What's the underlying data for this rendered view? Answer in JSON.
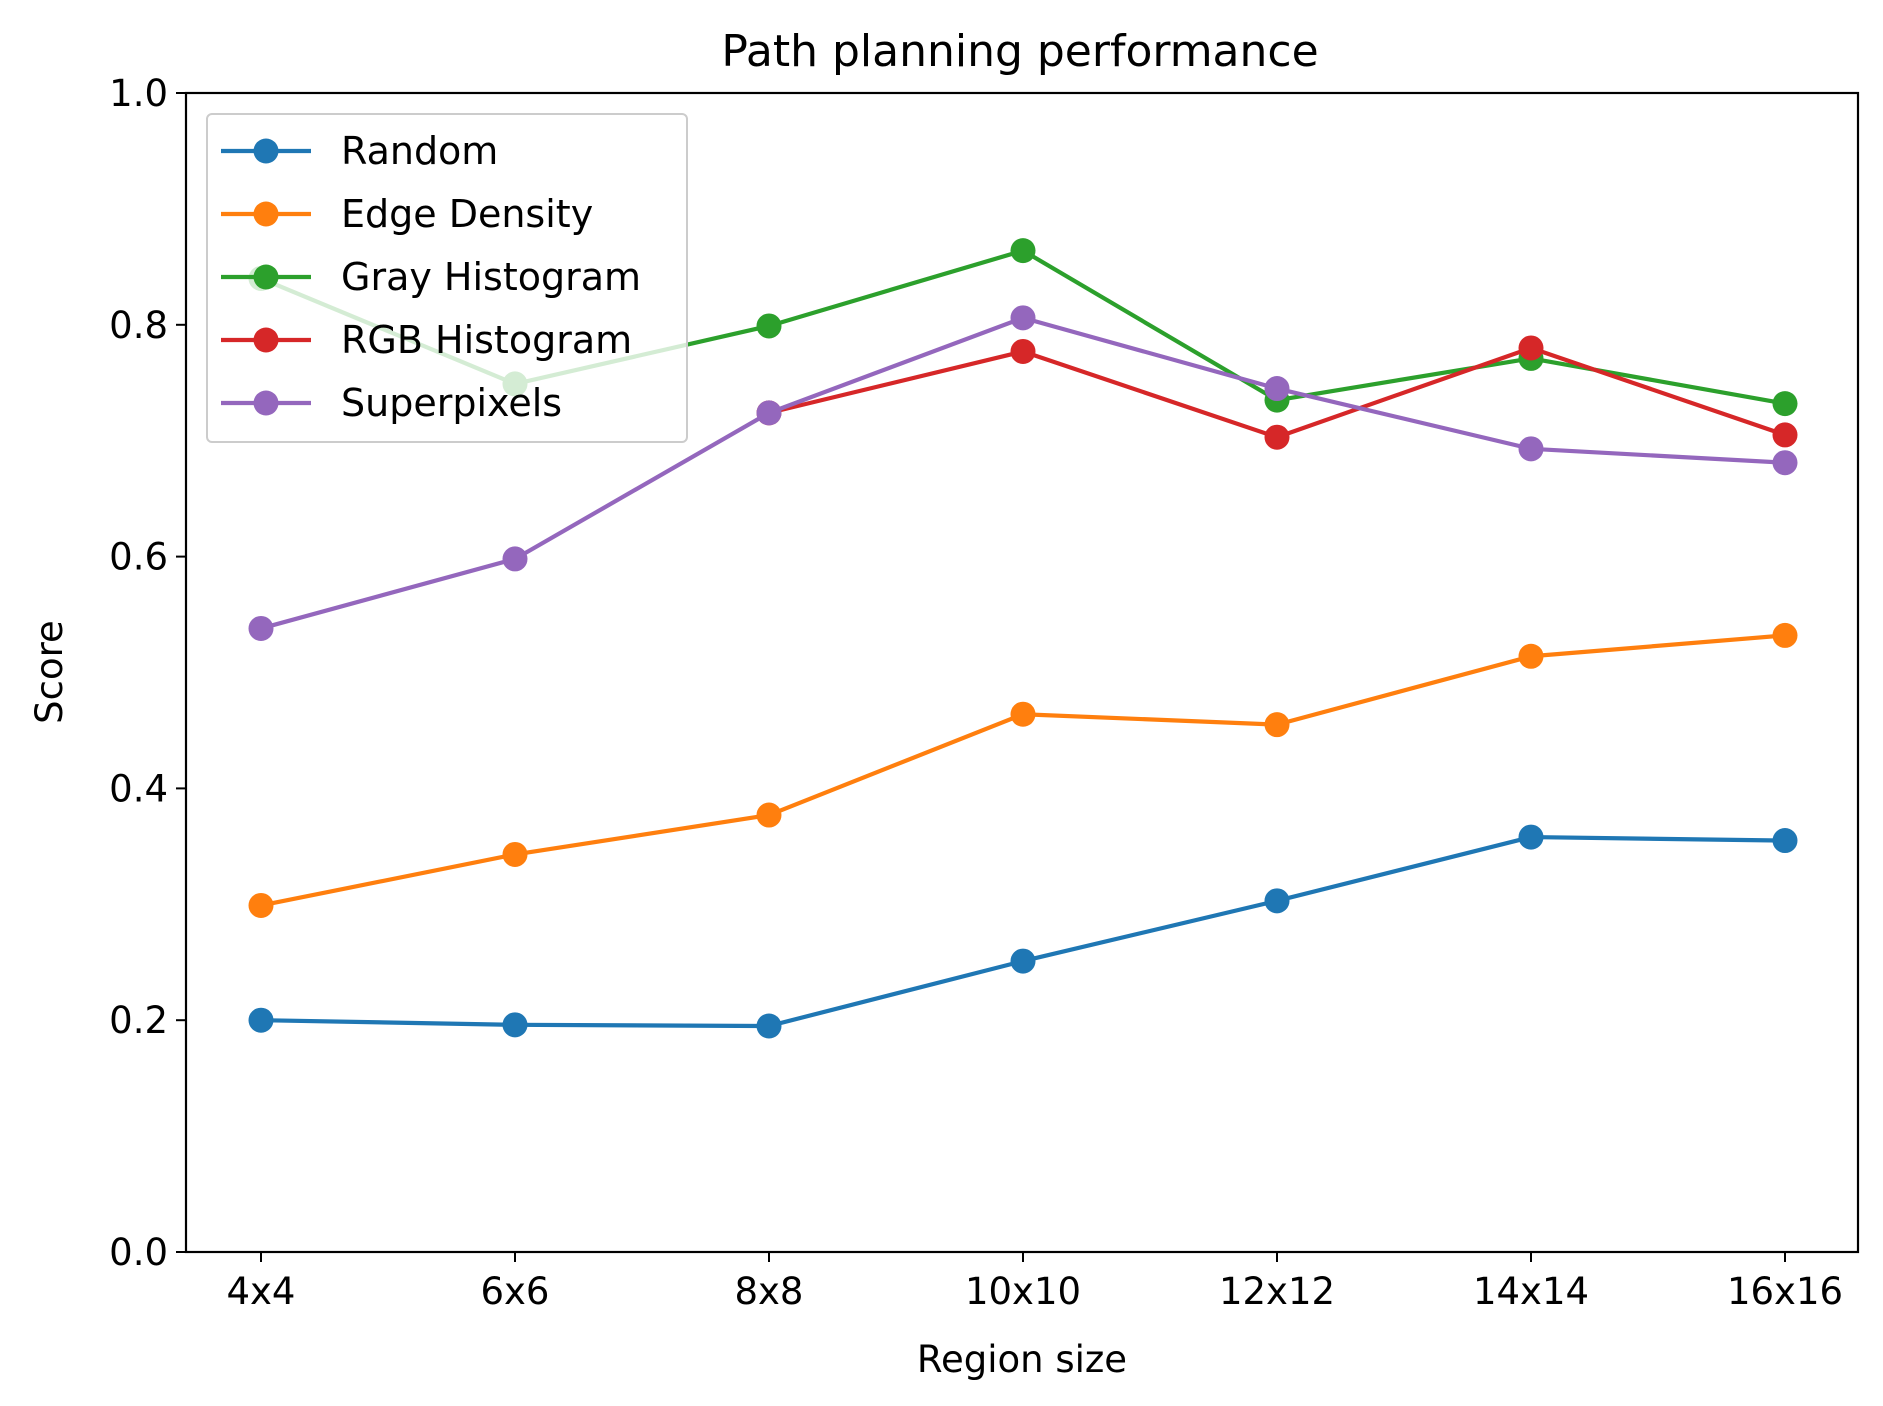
{
  "chart_data": {
    "type": "line",
    "title": "Path planning performance",
    "xlabel": "Region size",
    "ylabel": "Score",
    "categories": [
      "4x4",
      "6x6",
      "8x8",
      "10x10",
      "12x12",
      "14x14",
      "16x16"
    ],
    "ylim": [
      0,
      1.0
    ],
    "yticks": [
      "0.0",
      "0.2",
      "0.4",
      "0.6",
      "0.8",
      "1.0"
    ],
    "grid": false,
    "legend_position": "top-left",
    "series": [
      {
        "name": "Random",
        "color": "#1f77b4",
        "values": [
          0.2,
          0.196,
          0.195,
          0.251,
          0.303,
          0.358,
          0.355
        ]
      },
      {
        "name": "Edge Density",
        "color": "#ff7f0e",
        "values": [
          0.299,
          0.343,
          0.377,
          0.464,
          0.455,
          0.514,
          0.532
        ]
      },
      {
        "name": "Gray Histogram",
        "color": "#2ca02c",
        "values": [
          0.84,
          0.749,
          0.799,
          0.864,
          0.735,
          0.771,
          0.732
        ]
      },
      {
        "name": "RGB Histogram",
        "color": "#d62728",
        "values": [
          null,
          null,
          0.724,
          0.777,
          0.703,
          0.78,
          0.705
        ]
      },
      {
        "name": "Superpixels",
        "color": "#9467bd",
        "values": [
          0.538,
          0.598,
          0.724,
          0.806,
          0.745,
          0.693,
          0.681
        ]
      }
    ]
  }
}
